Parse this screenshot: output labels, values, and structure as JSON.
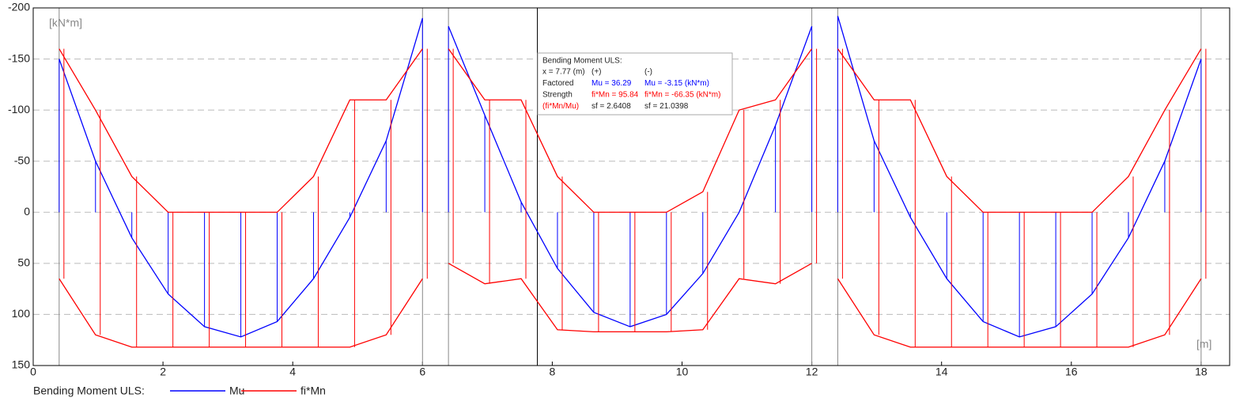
{
  "chart_data": {
    "type": "line",
    "y_label": "[kN*m]",
    "x_label": "[m]",
    "legend_title": "Bending Moment ULS:",
    "xlim": [
      0,
      18.44
    ],
    "ylim": [
      -200,
      150
    ],
    "xticks": [
      0,
      2,
      4,
      6,
      8,
      10,
      12,
      14,
      16,
      18
    ],
    "yticks": [
      -200,
      -150,
      -100,
      -50,
      0,
      50,
      100,
      150
    ],
    "grid": true,
    "supports": [
      0.4,
      6.0,
      6.4,
      12.0,
      12.4,
      18.0
    ],
    "cursor_x": 7.77,
    "x": [
      0.4,
      0.96,
      1.52,
      2.08,
      2.64,
      3.2,
      3.76,
      4.32,
      4.88,
      5.44,
      6.0,
      6.2,
      6.4,
      6.96,
      7.52,
      8.08,
      8.64,
      9.2,
      9.76,
      10.32,
      10.88,
      11.44,
      12.0,
      12.2,
      12.4,
      12.96,
      13.52,
      14.08,
      14.64,
      15.2,
      15.76,
      16.32,
      16.88,
      17.44,
      18.0
    ],
    "series": [
      {
        "name": "Mu",
        "color": "#0000ff",
        "values": [
          -150,
          -50,
          25,
          80,
          112,
          122,
          107,
          65,
          5,
          -70,
          -190,
          null,
          -182,
          -95,
          -10,
          55,
          98,
          112,
          100,
          60,
          0,
          -85,
          -182,
          null,
          -192,
          -70,
          5,
          65,
          107,
          122,
          112,
          80,
          25,
          -50,
          -150
        ]
      },
      {
        "name": "fi*Mn",
        "color": "#ff0000",
        "values": [
          65,
          120,
          132,
          132,
          132,
          132,
          132,
          132,
          132,
          120,
          65,
          null,
          50,
          70,
          65,
          115,
          117,
          117,
          117,
          115,
          65,
          70,
          50,
          null,
          65,
          120,
          132,
          132,
          132,
          132,
          132,
          132,
          132,
          120,
          65
        ],
        "neg_values": [
          -160,
          -100,
          -35,
          0,
          0,
          0,
          0,
          -35,
          -110,
          -110,
          -160,
          null,
          -160,
          -110,
          -110,
          -35,
          0,
          0,
          0,
          -20,
          -100,
          -110,
          -160,
          null,
          -160,
          -110,
          -110,
          -35,
          0,
          0,
          0,
          0,
          -35,
          -100,
          -160
        ]
      }
    ]
  },
  "tooltip": {
    "title": "Bending Moment ULS:",
    "rows": [
      [
        "x = 7.77 (m)",
        "(+)",
        "(-)"
      ],
      [
        "Factored",
        "Mu = 36.29",
        "Mu = -3.15 (kN*m)"
      ],
      [
        "Strength",
        "fi*Mn = 95.84",
        "fi*Mn = -66.35 (kN*m)"
      ],
      [
        "(fi*Mn/Mu)",
        "sf = 2.6408",
        "sf = 21.0398"
      ]
    ]
  }
}
